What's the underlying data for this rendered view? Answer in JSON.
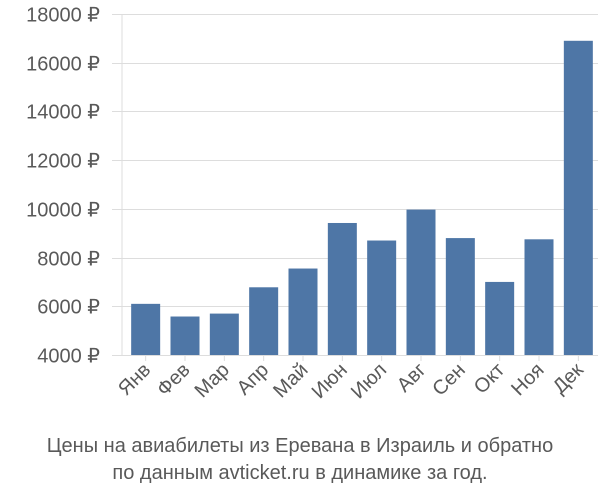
{
  "caption": {
    "line1": "Цены на авиабилеты из Еревана в Израиль и обратно",
    "line2": "по данным avticket.ru в динамике за год."
  },
  "chart_data": {
    "type": "bar",
    "categories": [
      "Янв",
      "Фев",
      "Мар",
      "Апр",
      "Май",
      "Июн",
      "Июл",
      "Авг",
      "Сен",
      "Окт",
      "Ноя",
      "Дек"
    ],
    "values": [
      6100,
      5580,
      5700,
      6780,
      7550,
      9420,
      8700,
      9970,
      8800,
      7000,
      8750,
      16900
    ],
    "y_ticks": [
      4000,
      6000,
      8000,
      10000,
      12000,
      14000,
      16000,
      18000
    ],
    "y_tick_suffix": " ₽",
    "ylim": [
      4000,
      18000
    ],
    "grid": true,
    "bar_color": "#4e76a6",
    "grid_color": "#dddddd"
  }
}
